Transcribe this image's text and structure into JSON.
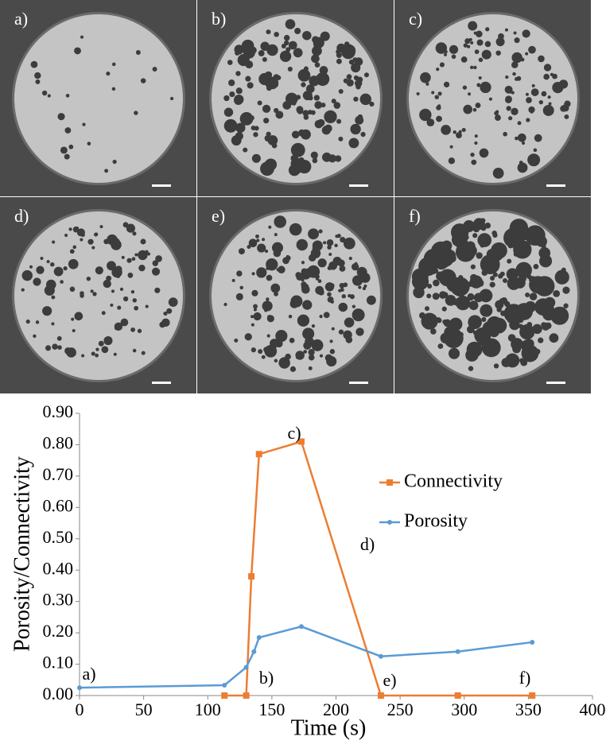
{
  "panels": [
    "a)",
    "b)",
    "c)",
    "d)",
    "e)",
    "f)"
  ],
  "chart_data": {
    "type": "line",
    "x_label": "Time (s)",
    "y_label": "Porosity/Connectivity",
    "xlim": [
      0,
      400
    ],
    "xticks": [
      0,
      50,
      100,
      150,
      200,
      250,
      300,
      350,
      400
    ],
    "ylim": [
      0,
      0.9
    ],
    "yticks": [
      {
        "value": 0,
        "label": "0.00"
      },
      {
        "value": 0.1,
        "label": "0.10"
      },
      {
        "value": 0.2,
        "label": "0.20"
      },
      {
        "value": 0.3,
        "label": "0.30"
      },
      {
        "value": 0.4,
        "label": "0.40"
      },
      {
        "value": 0.5,
        "label": "0.50"
      },
      {
        "value": 0.6,
        "label": "0.60"
      },
      {
        "value": 0.7,
        "label": "0.70"
      },
      {
        "value": 0.8,
        "label": "0.80"
      },
      {
        "value": 0.9,
        "label": "0.90"
      }
    ],
    "series": [
      {
        "name": "Connectivity",
        "color": "#ed7d31",
        "marker": "square",
        "x": [
          113,
          130,
          134,
          140,
          173,
          235,
          295,
          353
        ],
        "values": [
          0,
          0,
          0.38,
          0.77,
          0.81,
          0,
          0,
          0
        ]
      },
      {
        "name": "Porosity",
        "color": "#5b9bd5",
        "marker": "circle",
        "x": [
          0,
          113,
          130,
          136,
          140,
          173,
          235,
          295,
          353
        ],
        "values": [
          0.025,
          0.033,
          0.09,
          0.14,
          0.185,
          0.22,
          0.125,
          0.14,
          0.17
        ]
      }
    ],
    "annotations": [
      "a)",
      "b)",
      "c)",
      "d)",
      "e)",
      "f)"
    ]
  }
}
